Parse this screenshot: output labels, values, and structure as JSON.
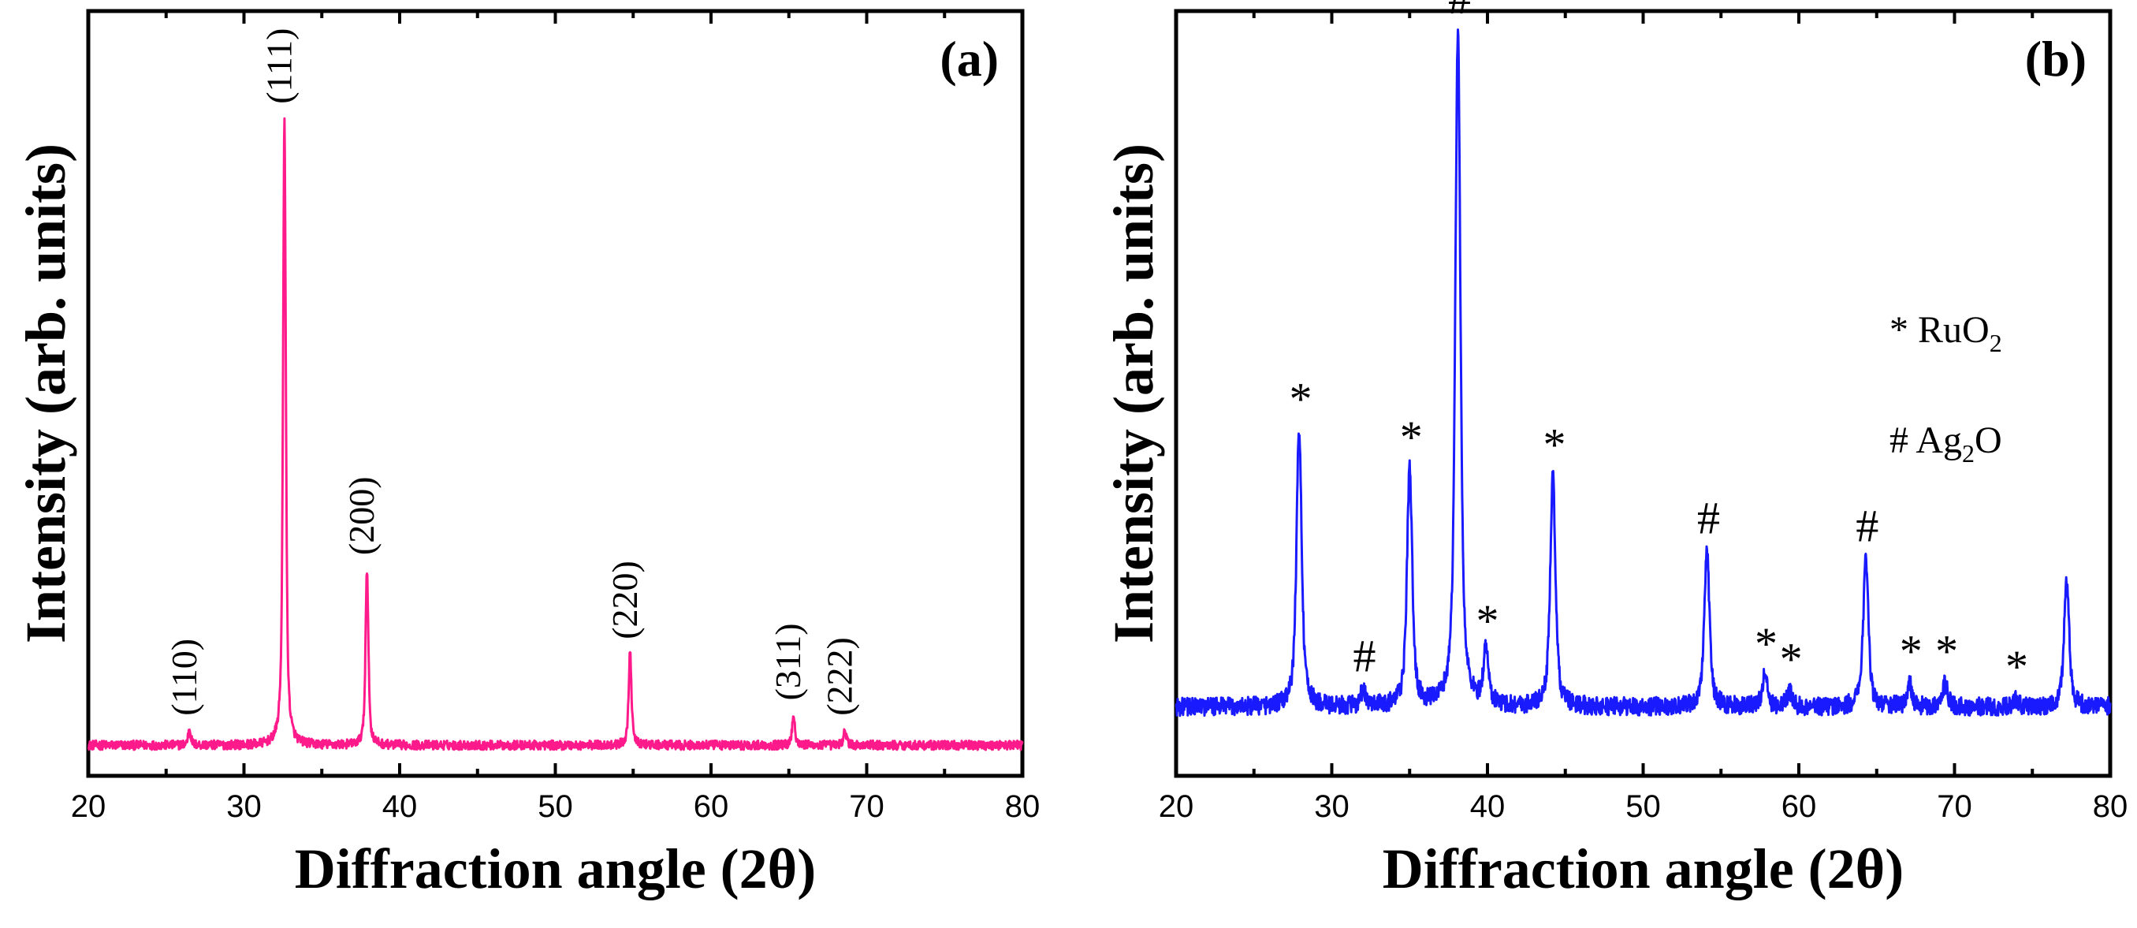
{
  "chart_data": [
    {
      "panel": "(a)",
      "type": "line",
      "xlabel": "Diffraction angle (2θ)",
      "ylabel": "Intensity (arb. units)",
      "xlim": [
        20,
        80
      ],
      "ylim": [
        0,
        1
      ],
      "xticks": [
        20,
        30,
        40,
        50,
        60,
        70,
        80
      ],
      "color": "#ff1a8c",
      "baseline": 0.04,
      "peaks": [
        {
          "x": 26.5,
          "y": 0.06,
          "label": "(110)"
        },
        {
          "x": 32.6,
          "y": 0.86,
          "label": "(111)"
        },
        {
          "x": 37.9,
          "y": 0.27,
          "label": "(200)"
        },
        {
          "x": 54.8,
          "y": 0.16,
          "label": "(220)"
        },
        {
          "x": 65.3,
          "y": 0.08,
          "label": "(311)"
        },
        {
          "x": 68.6,
          "y": 0.06,
          "label": "(222)"
        }
      ]
    },
    {
      "panel": "(b)",
      "type": "line",
      "xlabel": "Diffraction angle (2θ)",
      "ylabel": "Intensity (arb. units)",
      "xlim": [
        20,
        80
      ],
      "ylim": [
        0,
        1
      ],
      "xticks": [
        20,
        30,
        40,
        50,
        60,
        70,
        80
      ],
      "color": "#1a1aff",
      "baseline": 0.09,
      "legend": [
        {
          "symbol": "*",
          "label": "RuO",
          "sub": "2",
          "suffix": ""
        },
        {
          "symbol": "#",
          "label": "Ag",
          "sub": "2",
          "suffix": "O"
        }
      ],
      "peaks": [
        {
          "x": 27.9,
          "y": 0.45,
          "marker": "*"
        },
        {
          "x": 32.0,
          "y": 0.11,
          "marker": "#"
        },
        {
          "x": 35.0,
          "y": 0.4,
          "marker": "*"
        },
        {
          "x": 38.1,
          "y": 0.97,
          "marker": "#"
        },
        {
          "x": 39.9,
          "y": 0.16,
          "marker": "*"
        },
        {
          "x": 44.2,
          "y": 0.39,
          "marker": "*"
        },
        {
          "x": 54.1,
          "y": 0.29,
          "marker": "#"
        },
        {
          "x": 57.8,
          "y": 0.13,
          "marker": "*"
        },
        {
          "x": 59.4,
          "y": 0.11,
          "marker": "*"
        },
        {
          "x": 64.3,
          "y": 0.28,
          "marker": "#"
        },
        {
          "x": 67.1,
          "y": 0.12,
          "marker": "*"
        },
        {
          "x": 69.4,
          "y": 0.12,
          "marker": "*"
        },
        {
          "x": 73.9,
          "y": 0.1,
          "marker": "*"
        },
        {
          "x": 77.2,
          "y": 0.25,
          "marker": ""
        }
      ]
    }
  ]
}
